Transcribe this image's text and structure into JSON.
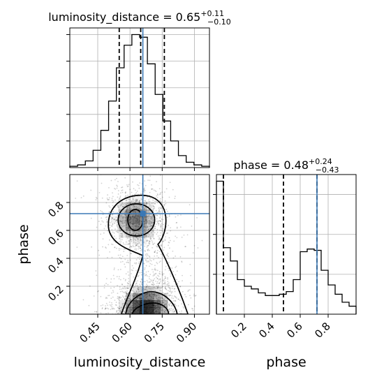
{
  "chart_data": {
    "type": "corner",
    "colors": {
      "truth": "#3a78b5",
      "hist": "#000000",
      "grid": "#b0b0b0"
    },
    "params": [
      {
        "name": "luminosity_distance",
        "title_prefix": "luminosity_distance = 0.65",
        "median": 0.65,
        "plus": "+0.11",
        "minus": "−0.10",
        "quantiles": [
          0.55,
          0.65,
          0.76
        ],
        "truth": 0.66,
        "range": [
          0.32,
          0.97
        ],
        "ticks": [
          0.45,
          0.6,
          0.75,
          0.9
        ],
        "tick_labels": [
          "0.45",
          "0.60",
          "0.75",
          "0.90"
        ],
        "hist": [
          0.01,
          0.02,
          0.05,
          0.13,
          0.28,
          0.5,
          0.75,
          0.92,
          1.0,
          0.98,
          0.78,
          0.55,
          0.35,
          0.2,
          0.09,
          0.04,
          0.02,
          0.01
        ]
      },
      {
        "name": "phase",
        "title_prefix": "phase = 0.48",
        "median": 0.48,
        "plus": "+0.24",
        "minus": "−0.43",
        "quantiles": [
          0.05,
          0.48,
          0.72
        ],
        "truth": 0.72,
        "range": [
          0.0,
          1.0
        ],
        "ticks": [
          0.2,
          0.4,
          0.6,
          0.8
        ],
        "tick_labels": [
          "0.2",
          "0.4",
          "0.6",
          "0.8"
        ],
        "hist": [
          1.0,
          0.5,
          0.4,
          0.26,
          0.21,
          0.19,
          0.16,
          0.14,
          0.14,
          0.15,
          0.17,
          0.26,
          0.47,
          0.49,
          0.48,
          0.33,
          0.22,
          0.15,
          0.09,
          0.06
        ]
      }
    ],
    "axis_labels": {
      "x_left": "luminosity_distance",
      "x_right": "phase",
      "y_bottom": "phase"
    },
    "ylim_hist": [
      0,
      1.05
    ],
    "grid": true
  }
}
